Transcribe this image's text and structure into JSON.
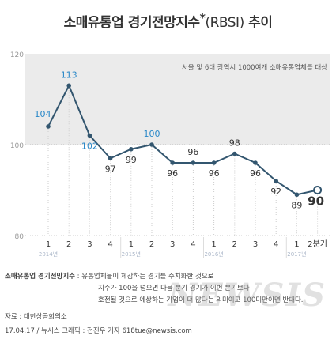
{
  "title": {
    "main": "소매유통업 경기전망지수",
    "sup": "*",
    "paren": "(RBSI)",
    "tail": " 추이"
  },
  "chart_data": {
    "type": "line",
    "subtitle": "서울 및 6대 광역시 1000여개 소매유통업체를 대상",
    "x": [
      "1",
      "2",
      "3",
      "4",
      "1",
      "2",
      "3",
      "4",
      "1",
      "2",
      "3",
      "4",
      "1",
      "2분기"
    ],
    "year_labels": [
      {
        "label": "2014년",
        "at": 0
      },
      {
        "label": "2015년",
        "at": 4
      },
      {
        "label": "2016년",
        "at": 8
      },
      {
        "label": "2017년",
        "at": 12
      }
    ],
    "series": [
      {
        "values": [
          104,
          113,
          102,
          97,
          99,
          100,
          96,
          96,
          96,
          98,
          96,
          92,
          89,
          90
        ]
      }
    ],
    "ylim": [
      80,
      120
    ],
    "yticks": [
      80,
      100,
      120
    ],
    "highlight_last": true,
    "colors": {
      "line": "#33566f",
      "marker": "#33566f",
      "label_blue": "#2a88c8",
      "label_dark": "#333333",
      "shade": "#ebebeb",
      "axis_tick": "#999999"
    }
  },
  "notes": {
    "definition_label": "소매유통업 경기전망지수",
    "definition_sep": " : ",
    "definition_lines": [
      "유통업체들이 체감하는 경기를 수치화한 것으로",
      "지수가 100을 넘으면 다음 분기 경기가 이번 분기보다",
      "호전될 것으로 예상하는 기업이 더 많다는 의미이고 100미만이면 반대다."
    ],
    "source": "자료 : 대한상공회의소",
    "credit": "17.04.17 / 뉴시스 그래픽 : 전진우 기자 618tue@newsis.com",
    "watermark": "NEWSIS"
  }
}
